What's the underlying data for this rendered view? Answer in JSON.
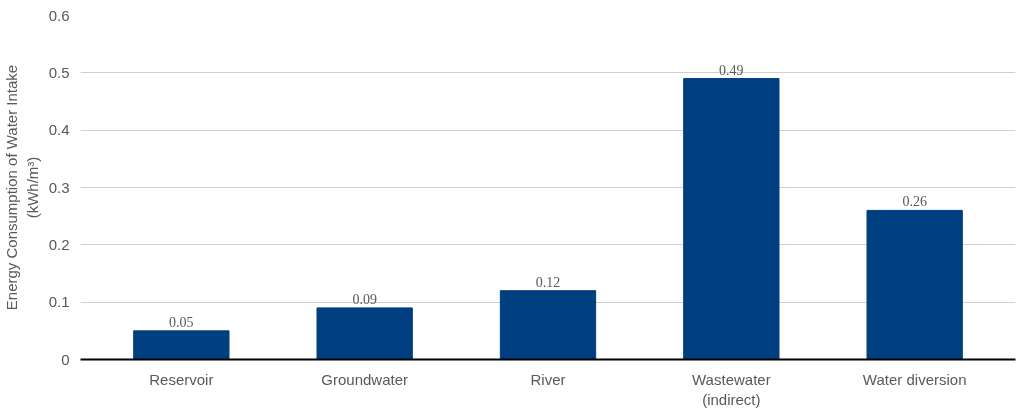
{
  "chart_data": {
    "type": "bar",
    "ylabel": "Energy Consumption of Water Intake\n(kWh/m³)",
    "categories": [
      "Reservoir",
      "Groundwater",
      "River",
      "Wastewater\n(indirect)",
      "Water diversion"
    ],
    "values": [
      0.05,
      0.09,
      0.12,
      0.49,
      0.26
    ],
    "color": "#003f7f",
    "ylim": [
      0,
      0.6
    ],
    "yticks": [
      0,
      0.1,
      0.2,
      0.3,
      0.4,
      0.5,
      0.6
    ],
    "grid": "y",
    "data_labels": true
  }
}
